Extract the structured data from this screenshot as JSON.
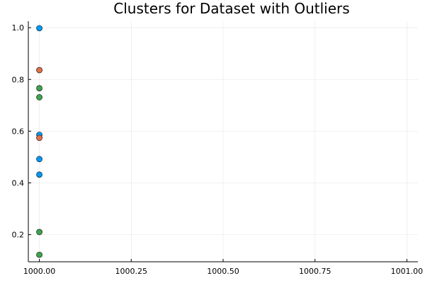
{
  "chart_data": {
    "type": "scatter",
    "title": "Clusters for Dataset with Outliers",
    "xlabel": "",
    "ylabel": "",
    "xlim": [
      999.97,
      1001.03
    ],
    "ylim": [
      0.095,
      1.025
    ],
    "x_ticks": [
      1000.0,
      1000.25,
      1000.5,
      1000.75,
      1001.0
    ],
    "x_tick_labels": [
      "1000.00",
      "1000.25",
      "1000.50",
      "1000.75",
      "1001.00"
    ],
    "y_ticks": [
      0.2,
      0.4,
      0.6,
      0.8,
      1.0
    ],
    "y_tick_labels": [
      "0.2",
      "0.4",
      "0.6",
      "0.8",
      "1.0"
    ],
    "grid": true,
    "legend": "none",
    "series": [
      {
        "color": "#009AFA",
        "points": [
          {
            "x": 1000.0,
            "y": 0.998
          },
          {
            "x": 1000.0,
            "y": 0.586
          },
          {
            "x": 1000.0,
            "y": 0.492
          },
          {
            "x": 1000.0,
            "y": 0.432
          }
        ]
      },
      {
        "color": "#E36F47",
        "points": [
          {
            "x": 1000.0,
            "y": 0.836
          },
          {
            "x": 1000.0,
            "y": 0.574
          }
        ]
      },
      {
        "color": "#3EA44E",
        "points": [
          {
            "x": 1000.0,
            "y": 0.766
          },
          {
            "x": 1000.0,
            "y": 0.731
          },
          {
            "x": 1000.0,
            "y": 0.21
          },
          {
            "x": 1000.0,
            "y": 0.122
          }
        ]
      }
    ]
  }
}
